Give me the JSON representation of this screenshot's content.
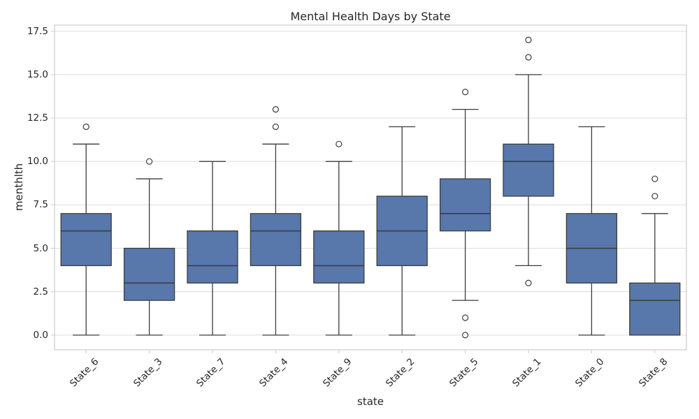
{
  "chart_data": {
    "type": "boxplot",
    "title": "Mental Health Days by State",
    "xlabel": "state",
    "ylabel": "menthlth",
    "categories": [
      "State_6",
      "State_3",
      "State_7",
      "State_4",
      "State_9",
      "State_2",
      "State_5",
      "State_1",
      "State_0",
      "State_8"
    ],
    "boxes": [
      {
        "label": "State_6",
        "whislo": 0,
        "q1": 4,
        "med": 6,
        "q3": 7,
        "whishi": 11,
        "fliers": [
          12
        ]
      },
      {
        "label": "State_3",
        "whislo": 0,
        "q1": 2,
        "med": 3,
        "q3": 5,
        "whishi": 9,
        "fliers": [
          10
        ]
      },
      {
        "label": "State_7",
        "whislo": 0,
        "q1": 3,
        "med": 4,
        "q3": 6,
        "whishi": 10,
        "fliers": []
      },
      {
        "label": "State_4",
        "whislo": 0,
        "q1": 4,
        "med": 6,
        "q3": 7,
        "whishi": 11,
        "fliers": [
          12,
          13
        ]
      },
      {
        "label": "State_9",
        "whislo": 0,
        "q1": 3,
        "med": 4,
        "q3": 6,
        "whishi": 10,
        "fliers": [
          11
        ]
      },
      {
        "label": "State_2",
        "whislo": 0,
        "q1": 4,
        "med": 6,
        "q3": 8,
        "whishi": 12,
        "fliers": []
      },
      {
        "label": "State_5",
        "whislo": 2,
        "q1": 6,
        "med": 7,
        "q3": 9,
        "whishi": 13,
        "fliers": [
          14,
          1,
          0
        ]
      },
      {
        "label": "State_1",
        "whislo": 4,
        "q1": 8,
        "med": 10,
        "q3": 11,
        "whishi": 15,
        "fliers": [
          17,
          16,
          3
        ]
      },
      {
        "label": "State_0",
        "whislo": 0,
        "q1": 3,
        "med": 5,
        "q3": 7,
        "whishi": 12,
        "fliers": []
      },
      {
        "label": "State_8",
        "whislo": 0,
        "q1": 0,
        "med": 2,
        "q3": 3,
        "whishi": 7,
        "fliers": [
          9,
          8
        ]
      }
    ],
    "yticks": [
      0,
      2.5,
      5,
      7.5,
      10,
      12.5,
      15,
      17.5
    ],
    "ytick_labels": [
      "0.0",
      "2.5",
      "5.0",
      "7.5",
      "10.0",
      "12.5",
      "15.0",
      "17.5"
    ],
    "ylim": [
      -0.85,
      17.85
    ],
    "grid": true,
    "legend": "none",
    "colors": {
      "box_fill": "#5878AB",
      "line": "#3C3C3C",
      "grid": "#DCDCDC",
      "spine": "#CBCBCB",
      "text": "#262626",
      "background": "#FFFFFF"
    }
  }
}
